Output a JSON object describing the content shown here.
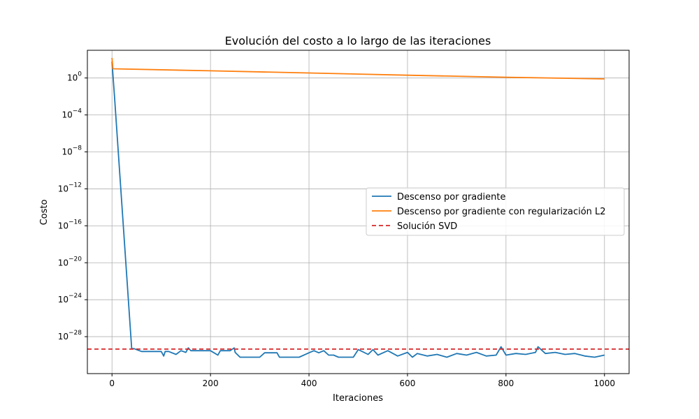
{
  "chart_data": {
    "type": "line",
    "title": "Evolución del costo a lo largo de las iteraciones",
    "xlabel": "Iteraciones",
    "ylabel": "Costo",
    "yscale": "log",
    "xlim": [
      -50,
      1050
    ],
    "ylim": [
      1e-32,
      1000.0
    ],
    "xticks": [
      0,
      200,
      400,
      600,
      800,
      1000
    ],
    "yticks": [
      {
        "base": "10",
        "exp": "0",
        "value": 1
      },
      {
        "base": "10",
        "exp": "−4",
        "value": 0.0001
      },
      {
        "base": "10",
        "exp": "−8",
        "value": 1e-08
      },
      {
        "base": "10",
        "exp": "−12",
        "value": 1e-12
      },
      {
        "base": "10",
        "exp": "−16",
        "value": 1e-16
      },
      {
        "base": "10",
        "exp": "−20",
        "value": 1e-20
      },
      {
        "base": "10",
        "exp": "−24",
        "value": 1e-24
      },
      {
        "base": "10",
        "exp": "−28",
        "value": 1e-28
      }
    ],
    "grid": true,
    "legend_position": "center-right",
    "series": [
      {
        "name": "Descenso por gradiente",
        "color": "#1f77b4",
        "style": "solid",
        "x": [
          0,
          5,
          40,
          45,
          60,
          80,
          100,
          105,
          108,
          115,
          130,
          140,
          150,
          155,
          160,
          200,
          215,
          220,
          240,
          248,
          250,
          260,
          290,
          300,
          310,
          335,
          340,
          350,
          360,
          380,
          400,
          410,
          420,
          430,
          440,
          450,
          460,
          470,
          490,
          500,
          520,
          530,
          540,
          560,
          580,
          600,
          610,
          620,
          640,
          660,
          680,
          700,
          720,
          740,
          760,
          780,
          790,
          800,
          820,
          840,
          860,
          865,
          880,
          900,
          920,
          940,
          960,
          980,
          1000
        ],
        "y": [
          60.0,
          0.01,
          5e-30,
          5e-30,
          2.5e-30,
          2.5e-30,
          2.5e-30,
          8e-31,
          2.5e-30,
          2.5e-30,
          1.2e-30,
          3e-30,
          2e-30,
          6e-30,
          3e-30,
          3e-30,
          1e-30,
          3e-30,
          3e-30,
          6e-30,
          2e-30,
          6e-31,
          6e-31,
          6e-31,
          1.8e-30,
          1.8e-30,
          6e-31,
          6e-31,
          6e-31,
          6e-31,
          1.8e-30,
          3e-30,
          1.8e-30,
          3e-30,
          1e-30,
          1e-30,
          6e-31,
          6e-31,
          6e-31,
          4e-30,
          1.2e-30,
          4e-30,
          1e-30,
          3e-30,
          8e-31,
          2e-30,
          6e-31,
          1.5e-30,
          8e-31,
          1.2e-30,
          6e-31,
          1.5e-30,
          1e-30,
          2e-30,
          8e-31,
          1e-30,
          8e-30,
          1e-30,
          1.5e-30,
          1.2e-30,
          2e-30,
          8e-30,
          1.5e-30,
          2e-30,
          1.2e-30,
          1.5e-30,
          8e-31,
          6e-31,
          1e-30
        ]
      },
      {
        "name": "Descenso por gradiente con regularización L2",
        "color": "#ff7f0e",
        "style": "solid",
        "x": [
          0,
          2,
          200,
          400,
          600,
          800,
          1000
        ],
        "y": [
          150.0,
          10,
          6,
          3.5,
          2,
          1.2,
          0.8
        ]
      },
      {
        "name": "Solución SVD",
        "color": "#d62728",
        "style": "dashed",
        "hline": 4.5e-30
      }
    ]
  }
}
